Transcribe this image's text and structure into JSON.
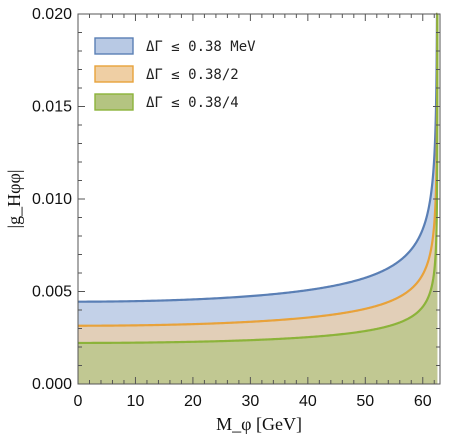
{
  "chart_data": {
    "type": "area",
    "xlabel": "M_φ [GeV]",
    "ylabel": "|g_Hφφ|",
    "xlim": [
      0,
      63
    ],
    "ylim": [
      0,
      0.02
    ],
    "x_ticks": [
      0,
      10,
      20,
      30,
      40,
      50,
      60
    ],
    "y_ticks": [
      "0.000",
      "0.005",
      "0.010",
      "0.015",
      "0.020"
    ],
    "y_tick_values": [
      0,
      0.005,
      0.01,
      0.015,
      0.02
    ],
    "grid": false,
    "legend_position": "top-left",
    "x_max": 62.55,
    "series": [
      {
        "name": "ΔΓ ≤ 0.38 MeV",
        "y0": 0.00445,
        "line_color": "#5a7fb5",
        "fill_color": "#b8c9e4"
      },
      {
        "name": "ΔΓ ≤ 0.38/2",
        "y0": 0.00315,
        "line_color": "#e8a23a",
        "fill_color": "#efcfa4"
      },
      {
        "name": "ΔΓ ≤ 0.38/4",
        "y0": 0.00222,
        "line_color": "#8cb33a",
        "fill_color": "#b4c481"
      }
    ]
  }
}
